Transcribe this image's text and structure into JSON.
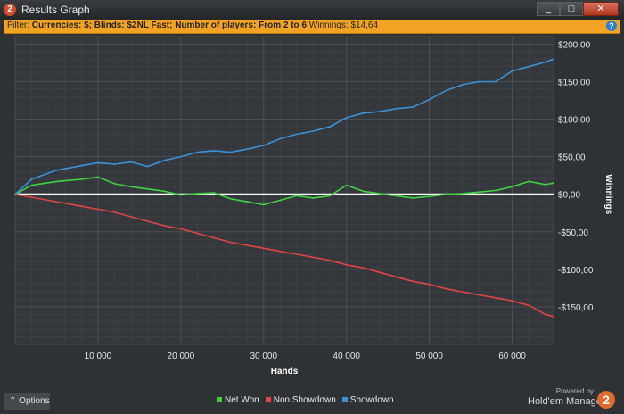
{
  "window": {
    "title": "Results Graph",
    "icon": "2",
    "controls": [
      "_",
      "□",
      "✕"
    ]
  },
  "filter": {
    "label": "Filter:",
    "criteria": "Currencies: $; Blinds: $2NL Fast; Number of players: From 2 to 6",
    "winnings": "Winnings: $14,64",
    "help": "?"
  },
  "options_label": "Options",
  "branding": {
    "powered_by": "Powered by",
    "product": "Hold'em Manager",
    "logo": "2"
  },
  "colors": {
    "net_won": "#3fd43f",
    "non_showdown": "#e04444",
    "showdown": "#3a93d8",
    "zero_line": "#ffffff",
    "filter_bar": "#f3a323"
  },
  "chart_data": {
    "type": "line",
    "xlabel": "Hands",
    "ylabel": "Winnings",
    "xlim": [
      0,
      65000
    ],
    "ylim": [
      -200,
      210
    ],
    "x_ticks": [
      10000,
      20000,
      30000,
      40000,
      50000,
      60000
    ],
    "x_tick_labels": [
      "10 000",
      "20 000",
      "30 000",
      "40 000",
      "50 000",
      "60 000"
    ],
    "y_ticks": [
      200,
      150,
      100,
      50,
      0,
      -50,
      -100,
      -150
    ],
    "y_tick_labels": [
      "$200,00",
      "$150,00",
      "$100,00",
      "$50,00",
      "$0,00",
      "-$50,00",
      "-$100,00",
      "-$150,00"
    ],
    "legend_position": "bottom-center",
    "grid": true,
    "series": [
      {
        "name": "Net Won",
        "color": "#3fd43f",
        "x": [
          0,
          2000,
          5000,
          8000,
          10000,
          12000,
          14000,
          16000,
          18000,
          20000,
          22000,
          24000,
          26000,
          28000,
          30000,
          32000,
          34000,
          36000,
          38000,
          40000,
          42000,
          44000,
          46000,
          48000,
          50000,
          52000,
          54000,
          56000,
          58000,
          60000,
          62000,
          64000,
          65000
        ],
        "y": [
          0,
          12,
          17,
          20,
          23,
          14,
          10,
          7,
          4,
          -1,
          1,
          2,
          -6,
          -10,
          -14,
          -8,
          -2,
          -5,
          -2,
          12,
          4,
          1,
          -2,
          -5,
          -3,
          0,
          1,
          3,
          5,
          10,
          17,
          13,
          15
        ]
      },
      {
        "name": "Non Showdown",
        "color": "#e04444",
        "x": [
          0,
          2000,
          5000,
          8000,
          10000,
          12000,
          14000,
          16000,
          18000,
          20000,
          22000,
          24000,
          26000,
          28000,
          30000,
          32000,
          34000,
          36000,
          38000,
          40000,
          42000,
          44000,
          46000,
          48000,
          50000,
          52000,
          54000,
          56000,
          58000,
          60000,
          62000,
          64000,
          65000
        ],
        "y": [
          0,
          -4,
          -10,
          -16,
          -20,
          -24,
          -30,
          -36,
          -42,
          -46,
          -52,
          -58,
          -64,
          -68,
          -72,
          -76,
          -80,
          -84,
          -88,
          -94,
          -98,
          -104,
          -110,
          -116,
          -120,
          -126,
          -130,
          -134,
          -138,
          -142,
          -148,
          -160,
          -163
        ]
      },
      {
        "name": "Showdown",
        "color": "#3a93d8",
        "x": [
          0,
          2000,
          5000,
          8000,
          10000,
          12000,
          14000,
          16000,
          18000,
          20000,
          22000,
          24000,
          26000,
          28000,
          30000,
          32000,
          34000,
          36000,
          38000,
          40000,
          42000,
          44000,
          46000,
          48000,
          50000,
          52000,
          54000,
          56000,
          58000,
          60000,
          62000,
          64000,
          65000
        ],
        "y": [
          0,
          20,
          32,
          38,
          42,
          40,
          43,
          37,
          45,
          50,
          56,
          58,
          56,
          60,
          65,
          74,
          80,
          84,
          90,
          102,
          108,
          110,
          114,
          116,
          126,
          138,
          146,
          150,
          150,
          164,
          170,
          176,
          180
        ]
      }
    ]
  }
}
